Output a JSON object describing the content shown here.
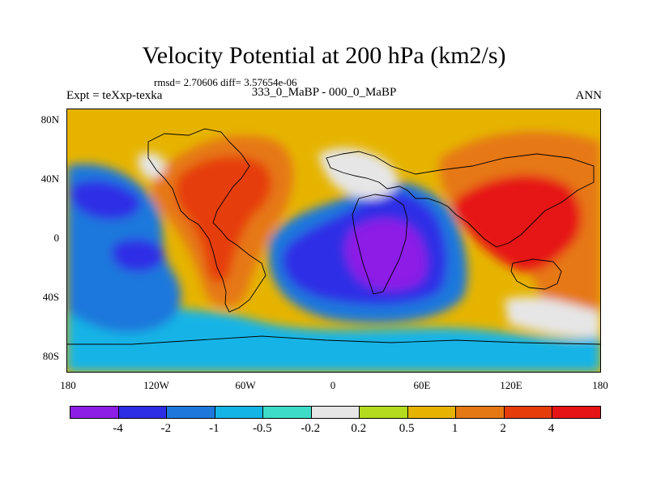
{
  "title": "Velocity Potential at 200 hPa (km2/s)",
  "stats": "rmsd= 2.70606 diff= 3.57654e-06",
  "left_label": "Expt = teXxp-texka",
  "center_label": "333_0_MaBP - 000_0_MaBP",
  "right_label": "ANN",
  "lat_ticks": [
    "80N",
    "40N",
    "0",
    "40S",
    "80S"
  ],
  "lon_ticks": [
    "180",
    "120W",
    "60W",
    "0",
    "60E",
    "120E",
    "180"
  ],
  "colorbar": {
    "colors": [
      "#8c1ee6",
      "#2d2de6",
      "#1e78dc",
      "#14b4e6",
      "#3cdcc8",
      "#e6e6e6",
      "#b4dc1e",
      "#e6b400",
      "#e67814",
      "#e63c0a",
      "#e61414"
    ],
    "labels": [
      "-4",
      "-2",
      "-1",
      "-0.5",
      "-0.2",
      "0.2",
      "0.5",
      "1",
      "2",
      "4"
    ]
  }
}
